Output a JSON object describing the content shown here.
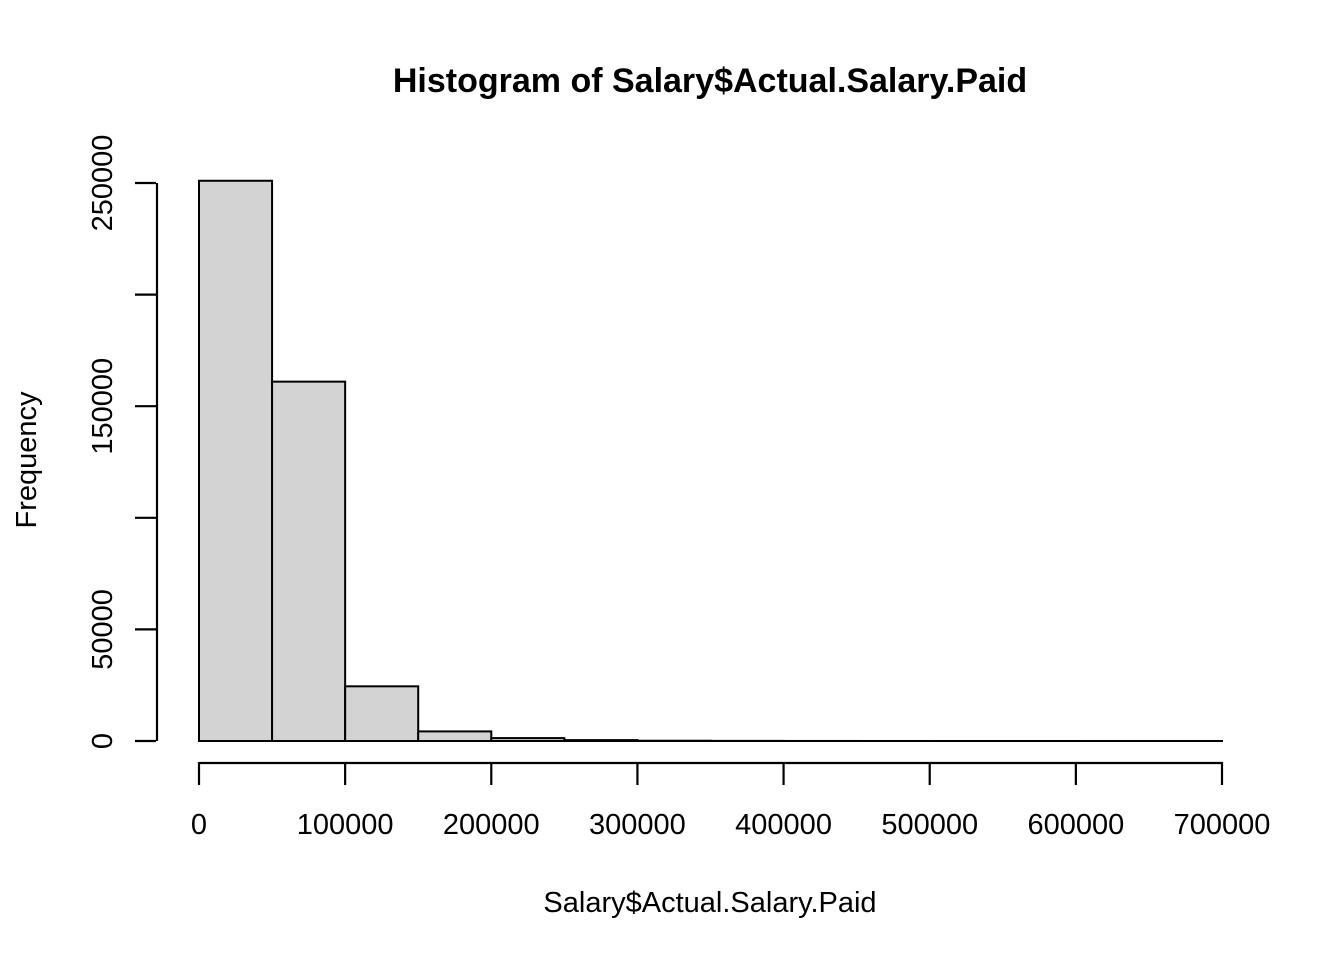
{
  "chart_data": {
    "type": "bar",
    "title": "Histogram of Salary$Actual.Salary.Paid",
    "xlabel": "Salary$Actual.Salary.Paid",
    "ylabel": "Frequency",
    "bin_edges": [
      0,
      50000,
      100000,
      150000,
      200000,
      250000,
      300000,
      350000,
      400000,
      450000,
      500000,
      550000,
      600000,
      650000,
      700000
    ],
    "values": [
      251000,
      161000,
      24500,
      4300,
      1300,
      400,
      120,
      50,
      20,
      10,
      6,
      3,
      2,
      1
    ],
    "xlim": [
      0,
      700000
    ],
    "ylim": [
      0,
      250000
    ],
    "x_ticks": [
      0,
      100000,
      200000,
      300000,
      400000,
      500000,
      600000,
      700000
    ],
    "x_tick_labels": [
      "0",
      "100000",
      "200000",
      "300000",
      "400000",
      "500000",
      "600000",
      "700000"
    ],
    "y_ticks": [
      0,
      50000,
      100000,
      150000,
      200000,
      250000
    ],
    "y_tick_labels": [
      "0",
      "50000",
      "",
      "150000",
      "",
      "250000"
    ],
    "grid": false,
    "legend": "none",
    "colors": {
      "bar_fill": "#d3d3d3",
      "bar_stroke": "#000000",
      "background": "#ffffff"
    }
  }
}
